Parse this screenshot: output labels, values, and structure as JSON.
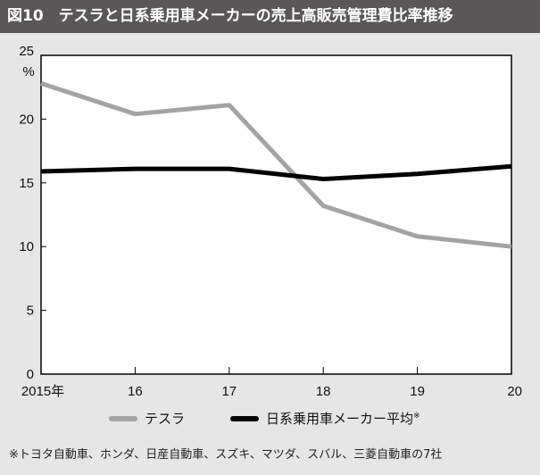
{
  "title": "図10　テスラと日系乗用車メーカーの売上高販売管理費比率推移",
  "footnote": "※トヨタ自動車、ホンダ、日産自動車、スズキ、マツダ、スバル、三菱自動車の7社",
  "chart_data": {
    "type": "line",
    "title": "図10　テスラと日系乗用車メーカーの売上高販売管理費比率推移",
    "x": [
      2015,
      2016,
      2017,
      2018,
      2019,
      2020
    ],
    "x_tick_labels": [
      "2015年",
      "16",
      "17",
      "18",
      "19",
      "20"
    ],
    "ylabel": "%",
    "ylim": [
      0,
      25
    ],
    "y_ticks": [
      0,
      5,
      10,
      15,
      20,
      25
    ],
    "grid": false,
    "legend_position": "bottom",
    "series": [
      {
        "name": "テスラ",
        "color": "#a3a3a3",
        "values": [
          22.8,
          20.4,
          21.1,
          13.2,
          10.8,
          10.0
        ]
      },
      {
        "name": "日系乗用車メーカー平均",
        "name_suffix": "※",
        "color": "#000000",
        "values": [
          15.9,
          16.1,
          16.1,
          15.3,
          15.7,
          16.3
        ]
      }
    ]
  }
}
